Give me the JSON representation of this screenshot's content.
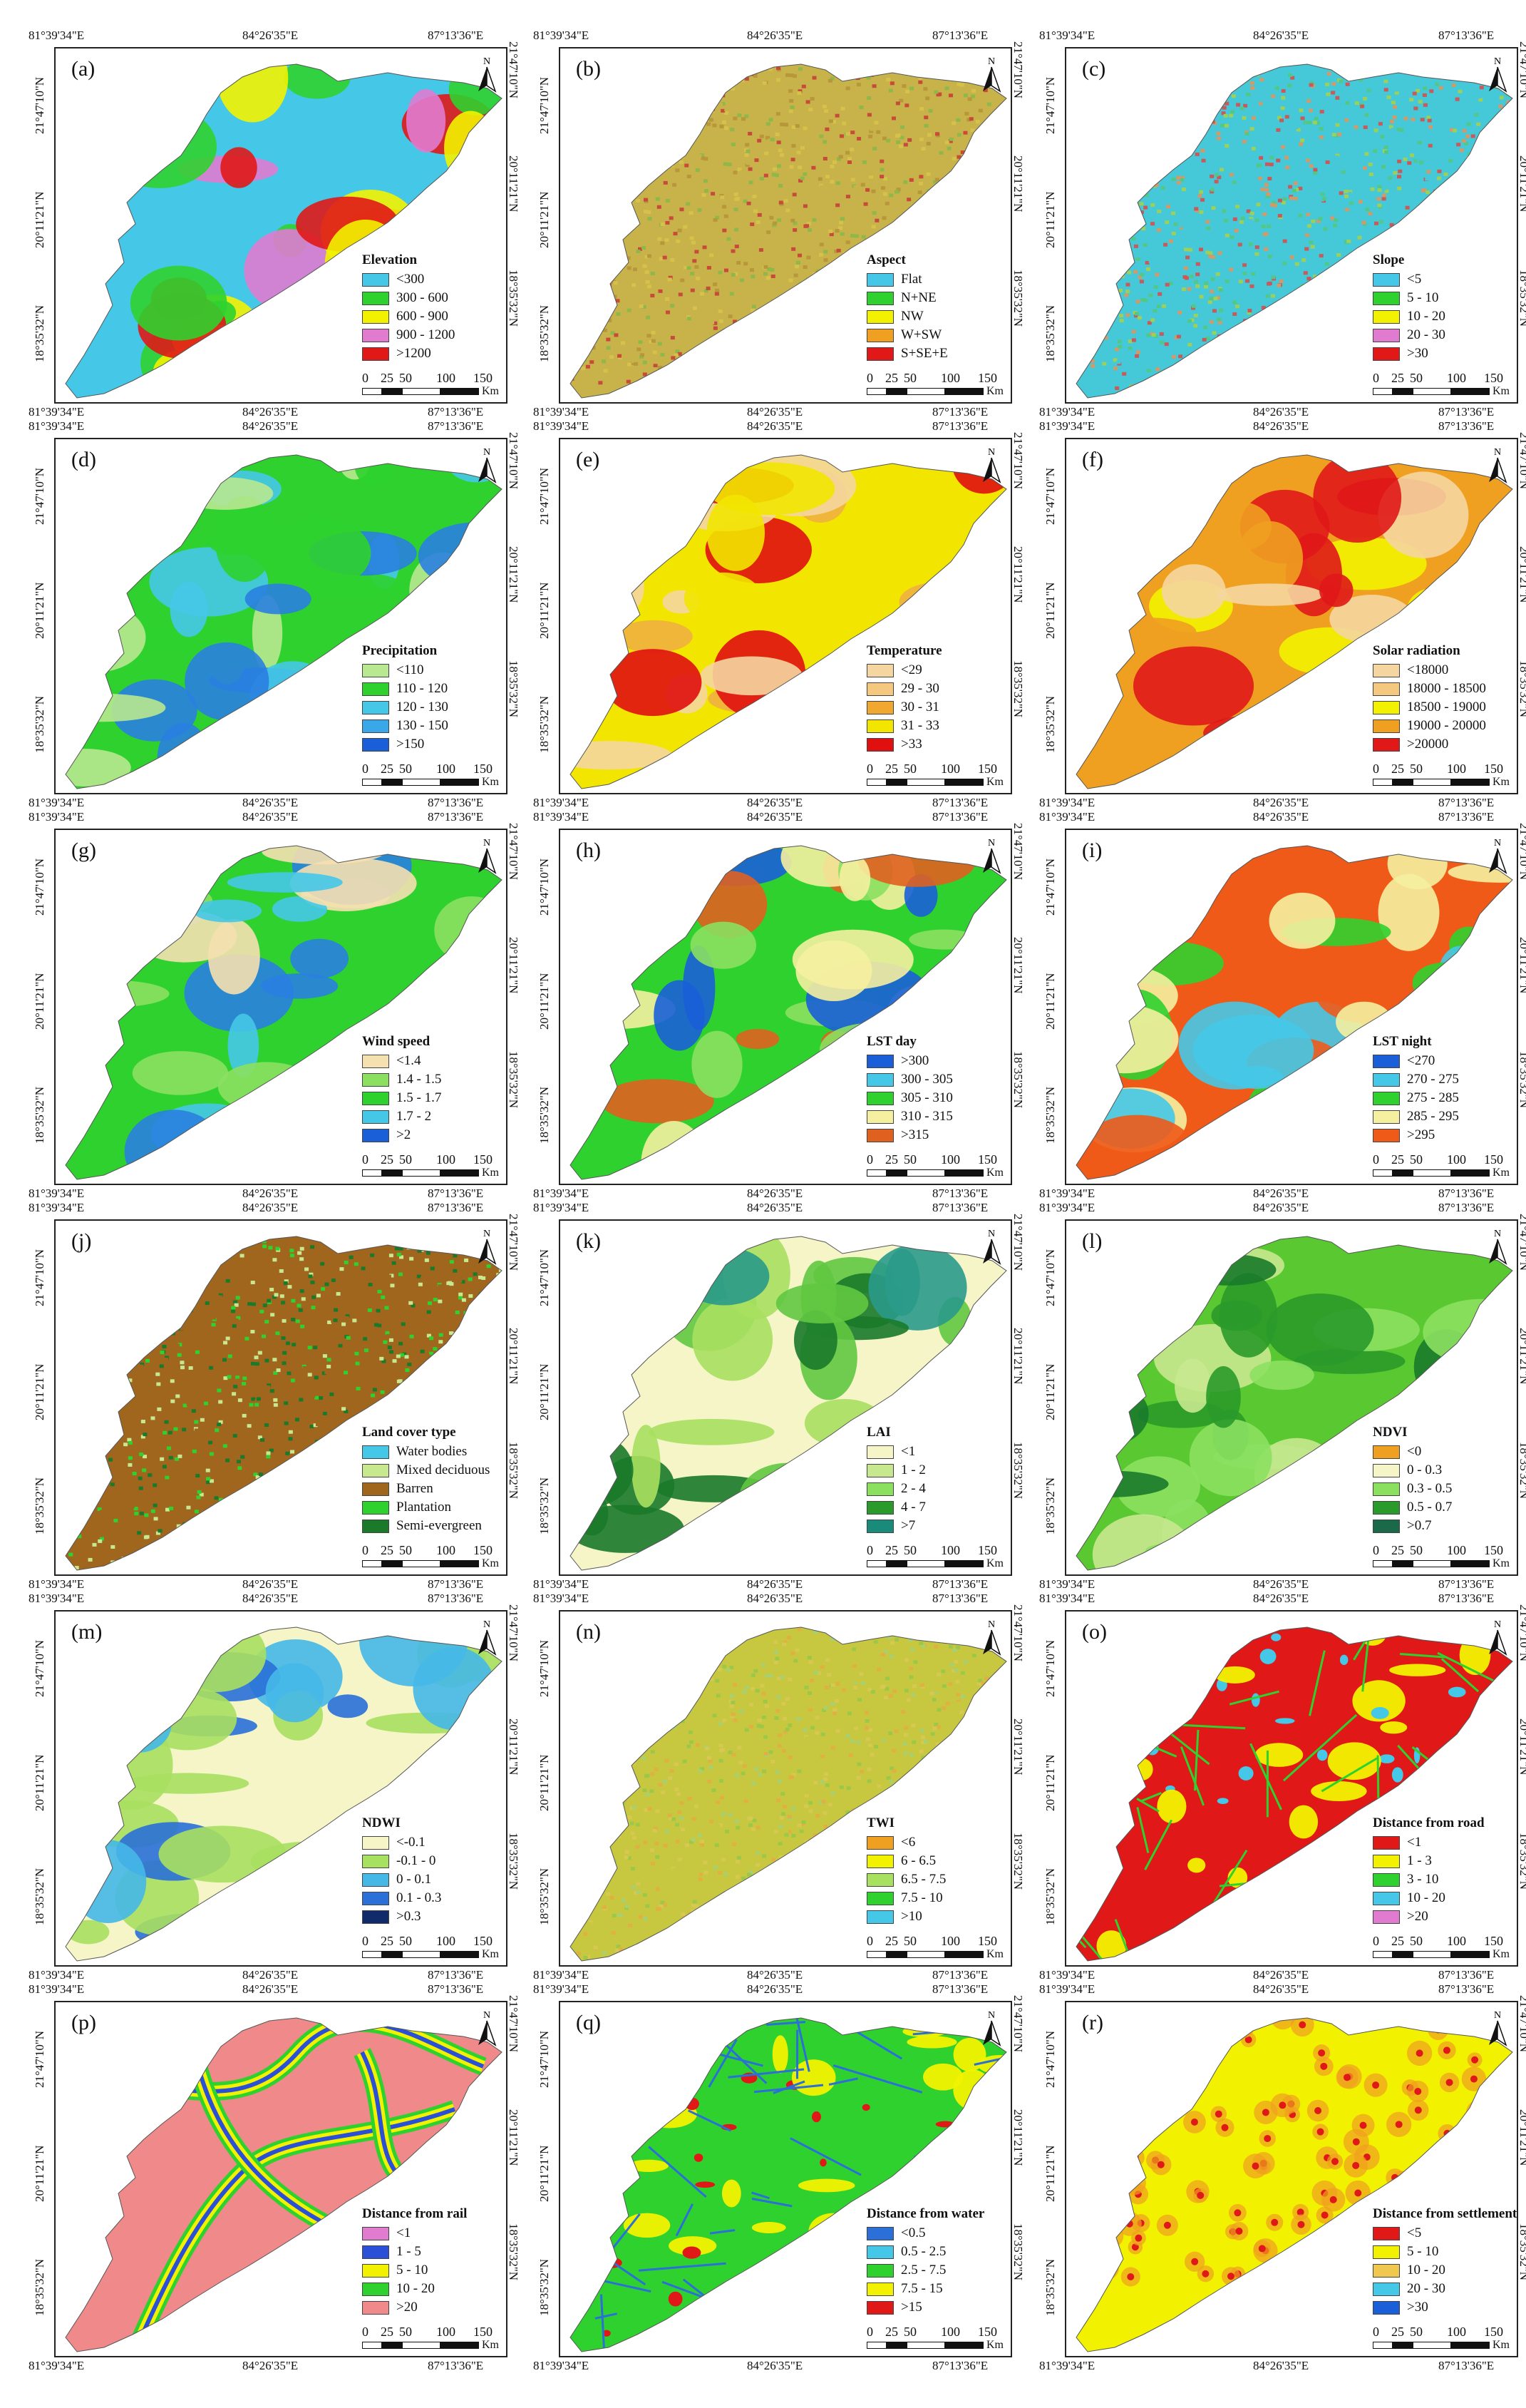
{
  "coords": {
    "lon": [
      "81°39'34\"E",
      "84°26'35\"E",
      "87°13'36\"E"
    ],
    "lat": [
      "21°47'10\"N",
      "20°11'21\"N",
      "18°35'32\"N"
    ]
  },
  "north_label": "N",
  "scale": {
    "labels": [
      "0",
      "25",
      "50",
      "100",
      "150"
    ],
    "unit": "Km"
  },
  "panels": [
    {
      "letter": "(a)",
      "legend_title": "Elevation",
      "style": "blobs",
      "palette": [
        "#45c8e8",
        "#2fd12f",
        "#f2f200",
        "#e07bd0",
        "#e01818"
      ],
      "items": [
        {
          "label": "<300",
          "color": "#45c8e8"
        },
        {
          "label": "300 - 600",
          "color": "#2fd12f"
        },
        {
          "label": "600 - 900",
          "color": "#f2f200"
        },
        {
          "label": "900 - 1200",
          "color": "#e07bd0"
        },
        {
          "label": ">1200",
          "color": "#e01818"
        }
      ]
    },
    {
      "letter": "(b)",
      "legend_title": "Aspect",
      "style": "speckle",
      "palette": [
        "#c8b24a",
        "#8fb84a",
        "#d6c24a",
        "#b8963a",
        "#c84a3a"
      ],
      "items": [
        {
          "label": "Flat",
          "color": "#45c8e8"
        },
        {
          "label": "N+NE",
          "color": "#2fd12f"
        },
        {
          "label": "NW",
          "color": "#f2f200"
        },
        {
          "label": "W+SW",
          "color": "#f0a020"
        },
        {
          "label": "S+SE+E",
          "color": "#e01818"
        }
      ]
    },
    {
      "letter": "(c)",
      "legend_title": "Slope",
      "style": "speckle",
      "palette": [
        "#45c8d8",
        "#52c888",
        "#9cd05a",
        "#d09a6a",
        "#c85a5a"
      ],
      "items": [
        {
          "label": "<5",
          "color": "#45c8e8"
        },
        {
          "label": "5 - 10",
          "color": "#2fd12f"
        },
        {
          "label": "10 - 20",
          "color": "#f2f200"
        },
        {
          "label": "20 - 30",
          "color": "#e07bd0"
        },
        {
          "label": ">30",
          "color": "#e01818"
        }
      ]
    },
    {
      "letter": "(d)",
      "legend_title": "Precipitation",
      "style": "blobs",
      "palette": [
        "#2fd12f",
        "#45c8e8",
        "#b8e890",
        "#2a80e0",
        "#2fd12f"
      ],
      "items": [
        {
          "label": "<110",
          "color": "#b8e890"
        },
        {
          "label": "110 - 120",
          "color": "#2fd12f"
        },
        {
          "label": "120 - 130",
          "color": "#45c8e8"
        },
        {
          "label": "130 - 150",
          "color": "#3aa8e8"
        },
        {
          "label": ">150",
          "color": "#1a5fd8"
        }
      ]
    },
    {
      "letter": "(e)",
      "legend_title": "Temperature",
      "style": "blobs",
      "palette": [
        "#f2e600",
        "#f0b040",
        "#f5d6a0",
        "#e01010",
        "#f2e600"
      ],
      "items": [
        {
          "label": "<29",
          "color": "#f5d6a0"
        },
        {
          "label": "29 - 30",
          "color": "#f5c880"
        },
        {
          "label": "30 - 31",
          "color": "#f0a830"
        },
        {
          "label": "31 - 33",
          "color": "#f2e600"
        },
        {
          "label": ">33",
          "color": "#e01010"
        }
      ]
    },
    {
      "letter": "(f)",
      "legend_title": "Solar radiation",
      "style": "blobs",
      "palette": [
        "#f0a020",
        "#f5d6a0",
        "#f2f200",
        "#e01818",
        "#f0a020"
      ],
      "items": [
        {
          "label": "<18000",
          "color": "#f5d6a0"
        },
        {
          "label": "18000 - 18500",
          "color": "#f5c880"
        },
        {
          "label": "18500 - 19000",
          "color": "#f2f200"
        },
        {
          "label": "19000 - 20000",
          "color": "#f0a020"
        },
        {
          "label": ">20000",
          "color": "#e01818"
        }
      ]
    },
    {
      "letter": "(g)",
      "legend_title": "Wind speed",
      "style": "blobs",
      "palette": [
        "#2fd12f",
        "#8be060",
        "#f5e0b0",
        "#2a80e0",
        "#45c8e8"
      ],
      "items": [
        {
          "label": "<1.4",
          "color": "#f5e0b0"
        },
        {
          "label": "1.4 - 1.5",
          "color": "#8be060"
        },
        {
          "label": "1.5 - 1.7",
          "color": "#2fd12f"
        },
        {
          "label": "1.7 - 2",
          "color": "#45c8e8"
        },
        {
          "label": ">2",
          "color": "#1a5fd8"
        }
      ]
    },
    {
      "letter": "(h)",
      "legend_title": "LST day",
      "style": "blobs",
      "palette": [
        "#2fd12f",
        "#f5f0a0",
        "#8be060",
        "#1a5fd8",
        "#e06020"
      ],
      "items": [
        {
          "label": ">300",
          "color": "#1a5fd8"
        },
        {
          "label": "300 - 305",
          "color": "#45c8e8"
        },
        {
          "label": "305 - 310",
          "color": "#2fd12f"
        },
        {
          "label": "310 - 315",
          "color": "#f5f0a0"
        },
        {
          "label": ">315",
          "color": "#e06020"
        }
      ]
    },
    {
      "letter": "(i)",
      "legend_title": "LST night",
      "style": "blobs",
      "palette": [
        "#f05a18",
        "#2fd12f",
        "#f5f0a0",
        "#45c8e8",
        "#f05a18"
      ],
      "items": [
        {
          "label": "<270",
          "color": "#1a5fd8"
        },
        {
          "label": "270 - 275",
          "color": "#45c8e8"
        },
        {
          "label": "275 - 285",
          "color": "#2fd12f"
        },
        {
          "label": "285 - 295",
          "color": "#f5f0a0"
        },
        {
          "label": ">295",
          "color": "#f05a18"
        }
      ]
    },
    {
      "letter": "(j)",
      "legend_title": "Land cover type",
      "style": "speckle",
      "palette": [
        "#a0661e",
        "#c8e890",
        "#a0661e",
        "#2fd12f",
        "#1a7a2a"
      ],
      "items": [
        {
          "label": "Water bodies",
          "color": "#45c8e8"
        },
        {
          "label": "Mixed deciduous",
          "color": "#c8e890"
        },
        {
          "label": "Barren",
          "color": "#a0661e"
        },
        {
          "label": "Plantation",
          "color": "#2fd12f"
        },
        {
          "label": "Semi-evergreen",
          "color": "#1a7a2a"
        }
      ]
    },
    {
      "letter": "(k)",
      "legend_title": "LAI",
      "style": "blobs",
      "palette": [
        "#f5f5c8",
        "#a8e060",
        "#60c840",
        "#1a7a2a",
        "#2a9a8a"
      ],
      "items": [
        {
          "label": "<1",
          "color": "#f5f5c8"
        },
        {
          "label": "1 - 2",
          "color": "#c8e890"
        },
        {
          "label": "2 - 4",
          "color": "#8be060"
        },
        {
          "label": "4 - 7",
          "color": "#2a9a2a"
        },
        {
          "label": ">7",
          "color": "#1a8a7a"
        }
      ]
    },
    {
      "letter": "(l)",
      "legend_title": "NDVI",
      "style": "blobs",
      "palette": [
        "#5ac830",
        "#8be060",
        "#2a9a2a",
        "#c8e890",
        "#1a7a2a"
      ],
      "items": [
        {
          "label": "<0",
          "color": "#f0a020"
        },
        {
          "label": "0 - 0.3",
          "color": "#f5f5c8"
        },
        {
          "label": "0.3 - 0.5",
          "color": "#8be060"
        },
        {
          "label": "0.5 - 0.7",
          "color": "#2a9a2a"
        },
        {
          "label": ">0.7",
          "color": "#1a6a4a"
        }
      ]
    },
    {
      "letter": "(m)",
      "legend_title": "NDWI",
      "style": "blobs",
      "palette": [
        "#f5f5c8",
        "#a8e060",
        "#45b8e8",
        "#2a70d8",
        "#a8e060"
      ],
      "items": [
        {
          "label": "<-0.1",
          "color": "#f5f5c8"
        },
        {
          "label": "-0.1 - 0",
          "color": "#a8e060"
        },
        {
          "label": "0 - 0.1",
          "color": "#45b8e8"
        },
        {
          "label": "0.1 - 0.3",
          "color": "#2a70d8"
        },
        {
          "label": ">0.3",
          "color": "#102a6a"
        }
      ]
    },
    {
      "letter": "(n)",
      "legend_title": "TWI",
      "style": "speckle",
      "palette": [
        "#c8c840",
        "#9cc848",
        "#d6c850",
        "#a8d070",
        "#e0b040"
      ],
      "items": [
        {
          "label": "<6",
          "color": "#f0a020"
        },
        {
          "label": "6 - 6.5",
          "color": "#f2f200"
        },
        {
          "label": "6.5 - 7.5",
          "color": "#a8e060"
        },
        {
          "label": "7.5 - 10",
          "color": "#2fd12f"
        },
        {
          "label": ">10",
          "color": "#45c8e8"
        }
      ]
    },
    {
      "letter": "(o)",
      "legend_title": "Distance from road",
      "style": "network",
      "palette": [
        "#e01818",
        "#2fd12f",
        "#f2f200",
        "#45c8e8",
        "#2fd12f"
      ],
      "items": [
        {
          "label": "<1",
          "color": "#e01818"
        },
        {
          "label": "1 - 3",
          "color": "#f2f200"
        },
        {
          "label": "3 - 10",
          "color": "#2fd12f"
        },
        {
          "label": "10 - 20",
          "color": "#45c8e8"
        },
        {
          "label": ">20",
          "color": "#e07bd0"
        }
      ]
    },
    {
      "letter": "(p)",
      "legend_title": "Distance from rail",
      "style": "rail",
      "palette": [
        "#f08a8a",
        "#2fd12f",
        "#2a50d8",
        "#f2f200",
        "#f08a8a"
      ],
      "items": [
        {
          "label": "<1",
          "color": "#e07bd0"
        },
        {
          "label": "1 - 5",
          "color": "#2a50d8"
        },
        {
          "label": "5 - 10",
          "color": "#f2f200"
        },
        {
          "label": "10 - 20",
          "color": "#2fd12f"
        },
        {
          "label": ">20",
          "color": "#f08a8a"
        }
      ]
    },
    {
      "letter": "(q)",
      "legend_title": "Distance from water",
      "style": "network",
      "palette": [
        "#2fd12f",
        "#2a70d8",
        "#f2f200",
        "#e01818",
        "#45c8e8"
      ],
      "items": [
        {
          "label": "<0.5",
          "color": "#2a70d8"
        },
        {
          "label": "0.5 - 2.5",
          "color": "#45c8e8"
        },
        {
          "label": "2.5 - 7.5",
          "color": "#2fd12f"
        },
        {
          "label": "7.5 - 15",
          "color": "#f2f200"
        },
        {
          "label": ">15",
          "color": "#e01818"
        }
      ]
    },
    {
      "letter": "(r)",
      "legend_title": "Distance from settlement",
      "style": "dots",
      "palette": [
        "#f2f200",
        "#e01818",
        "#f0a020",
        "#45c8e8",
        "#f2f200"
      ],
      "items": [
        {
          "label": "<5",
          "color": "#e01818"
        },
        {
          "label": "5 - 10",
          "color": "#f2f200"
        },
        {
          "label": "10 - 20",
          "color": "#f0c850"
        },
        {
          "label": "20 - 30",
          "color": "#45c8e8"
        },
        {
          "label": ">30",
          "color": "#1a5fd8"
        }
      ]
    }
  ]
}
